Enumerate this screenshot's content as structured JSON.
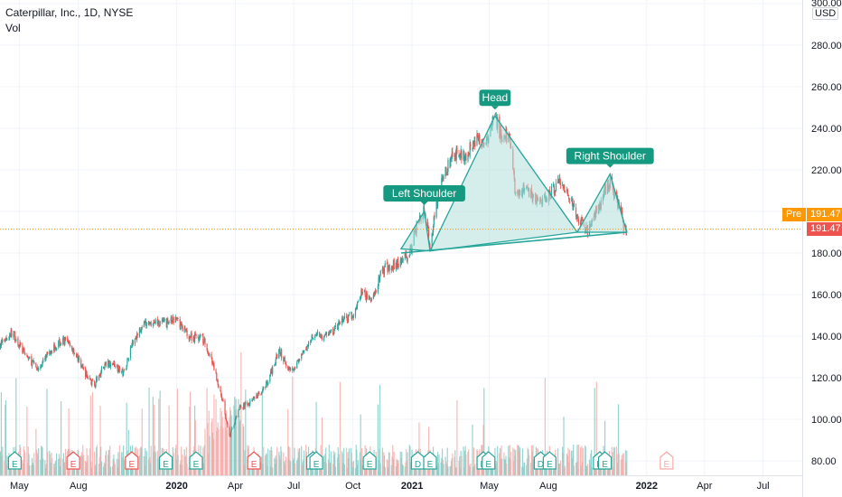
{
  "header": {
    "symbol_line": "Caterpillar, Inc., 1D, NYSE",
    "indicator": "Vol"
  },
  "price_axis": {
    "currency": "USD",
    "currency_note": "300.00"
  },
  "price_badges": {
    "pre_label": "Pre",
    "pre_value": "191.47",
    "last_value": "191.47"
  },
  "colors": {
    "up": "#26a69a",
    "down": "#ef5350",
    "pattern_fill": "#b2dfdb",
    "pattern_line": "#26a69a",
    "label_bg": "#159980",
    "pre_badge": "#ff9800",
    "last_badge": "#ef5350",
    "grid": "#f0f3fa"
  },
  "chart_data": {
    "type": "candlestick",
    "title": "Caterpillar, Inc., 1D, NYSE",
    "indicator": "Vol",
    "y_axis": {
      "ylim": [
        75,
        305
      ],
      "ticks": [
        80,
        100,
        120,
        140,
        160,
        180,
        200,
        220,
        240,
        260,
        280,
        300
      ],
      "tick_labels": [
        "80.00",
        "100.00",
        "120.00",
        "140.00",
        "160.00",
        "180.00",
        "",
        "220.00",
        "240.00",
        "260.00",
        "280.00",
        "300.00"
      ]
    },
    "x_axis": {
      "range": [
        "2019-04-01",
        "2022-08-31"
      ],
      "ticks": [
        {
          "date": "2019-05-01",
          "label": "May"
        },
        {
          "date": "2019-08-01",
          "label": "Aug"
        },
        {
          "date": "2020-01-01",
          "label": "2020"
        },
        {
          "date": "2020-04-01",
          "label": "Apr"
        },
        {
          "date": "2020-07-01",
          "label": "Jul"
        },
        {
          "date": "2020-10-01",
          "label": "Oct"
        },
        {
          "date": "2021-01-01",
          "label": "2021"
        },
        {
          "date": "2021-05-01",
          "label": "May"
        },
        {
          "date": "2021-08-01",
          "label": "Aug"
        },
        {
          "date": "2022-01-01",
          "label": "2022"
        },
        {
          "date": "2022-04-01",
          "label": "Apr"
        },
        {
          "date": "2022-07-01",
          "label": "Jul"
        }
      ]
    },
    "price_path": [
      [
        "2019-04-01",
        136
      ],
      [
        "2019-04-20",
        142
      ],
      [
        "2019-05-10",
        131
      ],
      [
        "2019-05-31",
        124
      ],
      [
        "2019-06-20",
        134
      ],
      [
        "2019-07-10",
        138
      ],
      [
        "2019-07-25",
        133
      ],
      [
        "2019-08-10",
        123
      ],
      [
        "2019-08-25",
        116
      ],
      [
        "2019-09-10",
        126
      ],
      [
        "2019-09-25",
        127
      ],
      [
        "2019-10-10",
        122
      ],
      [
        "2019-10-25",
        138
      ],
      [
        "2019-11-10",
        145
      ],
      [
        "2019-11-25",
        147
      ],
      [
        "2019-12-10",
        146
      ],
      [
        "2020-01-01",
        148
      ],
      [
        "2020-01-20",
        140
      ],
      [
        "2020-02-10",
        139
      ],
      [
        "2020-02-25",
        128
      ],
      [
        "2020-03-10",
        112
      ],
      [
        "2020-03-23",
        91
      ],
      [
        "2020-04-05",
        104
      ],
      [
        "2020-04-20",
        108
      ],
      [
        "2020-05-05",
        111
      ],
      [
        "2020-05-20",
        117
      ],
      [
        "2020-06-08",
        133
      ],
      [
        "2020-06-25",
        124
      ],
      [
        "2020-07-10",
        128
      ],
      [
        "2020-07-31",
        141
      ],
      [
        "2020-08-15",
        140
      ],
      [
        "2020-08-31",
        142
      ],
      [
        "2020-09-15",
        148
      ],
      [
        "2020-09-30",
        149
      ],
      [
        "2020-10-15",
        161
      ],
      [
        "2020-10-31",
        157
      ],
      [
        "2020-11-15",
        172
      ],
      [
        "2020-11-30",
        174
      ],
      [
        "2020-12-15",
        176
      ],
      [
        "2020-12-31",
        182
      ],
      [
        "2021-01-10",
        196
      ],
      [
        "2021-01-20",
        200
      ],
      [
        "2021-01-29",
        184
      ],
      [
        "2021-02-10",
        207
      ],
      [
        "2021-02-25",
        222
      ],
      [
        "2021-03-10",
        228
      ],
      [
        "2021-03-25",
        227
      ],
      [
        "2021-04-10",
        234
      ],
      [
        "2021-04-25",
        232
      ],
      [
        "2021-05-10",
        246
      ],
      [
        "2021-05-20",
        235
      ],
      [
        "2021-06-01",
        236
      ],
      [
        "2021-06-10",
        212
      ],
      [
        "2021-06-20",
        210
      ],
      [
        "2021-07-01",
        209
      ],
      [
        "2021-07-15",
        205
      ],
      [
        "2021-07-31",
        206
      ],
      [
        "2021-08-15",
        214
      ],
      [
        "2021-08-31",
        209
      ],
      [
        "2021-09-15",
        196
      ],
      [
        "2021-09-30",
        191
      ],
      [
        "2021-10-10",
        196
      ],
      [
        "2021-10-25",
        208
      ],
      [
        "2021-11-05",
        214
      ],
      [
        "2021-11-15",
        207
      ],
      [
        "2021-11-26",
        193
      ],
      [
        "2021-12-01",
        190
      ]
    ],
    "series": [
      {
        "name": "Left Shoulder",
        "points": [
          [
            "2020-12-15",
            182
          ],
          [
            "2021-01-20",
            200
          ],
          [
            "2021-01-29",
            181
          ]
        ]
      },
      {
        "name": "Head",
        "points": [
          [
            "2021-01-29",
            181
          ],
          [
            "2021-05-10",
            246
          ],
          [
            "2021-09-15",
            190
          ]
        ]
      },
      {
        "name": "Right Shoulder",
        "points": [
          [
            "2021-09-15",
            190
          ],
          [
            "2021-11-05",
            218
          ],
          [
            "2021-12-01",
            190
          ]
        ]
      },
      {
        "name": "neckline",
        "points": [
          [
            "2020-12-15",
            180
          ],
          [
            "2021-12-01",
            190
          ]
        ]
      }
    ],
    "annotations": [
      {
        "text": "Left Shoulder",
        "x": "2021-01-20",
        "y": 200
      },
      {
        "text": "Head",
        "x": "2021-05-10",
        "y": 246
      },
      {
        "text": "Right Shoulder",
        "x": "2021-11-05",
        "y": 218
      }
    ],
    "last_price": 191.47,
    "events": [
      {
        "date": "2019-04-24",
        "type": "E",
        "color": "up"
      },
      {
        "date": "2019-07-24",
        "type": "E",
        "color": "down"
      },
      {
        "date": "2019-10-23",
        "type": "E",
        "color": "down"
      },
      {
        "date": "2019-12-15",
        "type": "E",
        "color": "up"
      },
      {
        "date": "2020-01-31",
        "type": "E",
        "color": "up"
      },
      {
        "date": "2020-04-30",
        "type": "E",
        "color": "down"
      },
      {
        "date": "2020-07-31",
        "type": "D",
        "color": "up"
      },
      {
        "date": "2020-08-05",
        "type": "E",
        "color": "up"
      },
      {
        "date": "2020-10-27",
        "type": "E",
        "color": "up"
      },
      {
        "date": "2021-01-10",
        "type": "D",
        "color": "up"
      },
      {
        "date": "2021-01-29",
        "type": "E",
        "color": "up"
      },
      {
        "date": "2021-04-22",
        "type": "D",
        "color": "up"
      },
      {
        "date": "2021-04-30",
        "type": "E",
        "color": "up"
      },
      {
        "date": "2021-07-20",
        "type": "D",
        "color": "up"
      },
      {
        "date": "2021-08-03",
        "type": "E",
        "color": "up"
      },
      {
        "date": "2021-10-20",
        "type": "D",
        "color": "up"
      },
      {
        "date": "2021-10-28",
        "type": "E",
        "color": "up"
      },
      {
        "date": "2022-02-01",
        "type": "E",
        "color": "future"
      }
    ]
  }
}
